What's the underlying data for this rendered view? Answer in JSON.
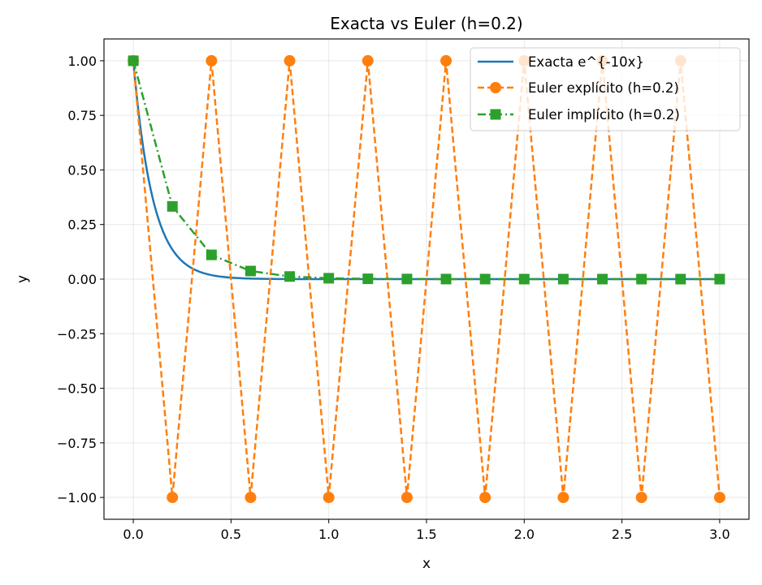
{
  "chart_data": {
    "type": "line",
    "title": "Exacta vs Euler (h=0.2)",
    "xlabel": "x",
    "ylabel": "y",
    "xlim": [
      -0.15,
      3.15
    ],
    "ylim": [
      -1.1,
      1.1
    ],
    "xticks": [
      0.0,
      0.5,
      1.0,
      1.5,
      2.0,
      2.5,
      3.0
    ],
    "xtick_labels": [
      "0.0",
      "0.5",
      "1.0",
      "1.5",
      "2.0",
      "2.5",
      "3.0"
    ],
    "yticks": [
      1.0,
      0.75,
      0.5,
      0.25,
      0.0,
      -0.25,
      -0.5,
      -0.75,
      -1.0
    ],
    "ytick_labels": [
      "1.00",
      "0.75",
      "0.50",
      "0.25",
      "0.00",
      "−0.25",
      "−0.50",
      "−0.75",
      "−1.00"
    ],
    "grid": true,
    "legend_position": "top-right",
    "series": [
      {
        "name": "Exacta e^{-10x}",
        "color": "#1f77b4",
        "style": "solid",
        "marker": "none",
        "function": "exp(-10x)",
        "x_range": [
          0,
          3
        ]
      },
      {
        "name": "Euler explícito (h=0.2)",
        "color": "#ff7f0e",
        "style": "dashed",
        "marker": "circle",
        "x": [
          0.0,
          0.2,
          0.4,
          0.6,
          0.8,
          1.0,
          1.2,
          1.4,
          1.6,
          1.8,
          2.0,
          2.2,
          2.4,
          2.6,
          2.8,
          3.0
        ],
        "y": [
          1,
          -1,
          1,
          -1,
          1,
          -1,
          1,
          -1,
          1,
          -1,
          1,
          -1,
          1,
          -1,
          1,
          -1
        ]
      },
      {
        "name": "Euler implícito (h=0.2)",
        "color": "#2ca02c",
        "style": "dashdot",
        "marker": "square",
        "x": [
          0.0,
          0.2,
          0.4,
          0.6,
          0.8,
          1.0,
          1.2,
          1.4,
          1.6,
          1.8,
          2.0,
          2.2,
          2.4,
          2.6,
          2.8,
          3.0
        ],
        "y": [
          1.0,
          0.333,
          0.111,
          0.037,
          0.012,
          0.004,
          0.0014,
          0.0005,
          0.0002,
          0.0001,
          0.0,
          0.0,
          0.0,
          0.0,
          0.0,
          0.0
        ]
      }
    ]
  }
}
